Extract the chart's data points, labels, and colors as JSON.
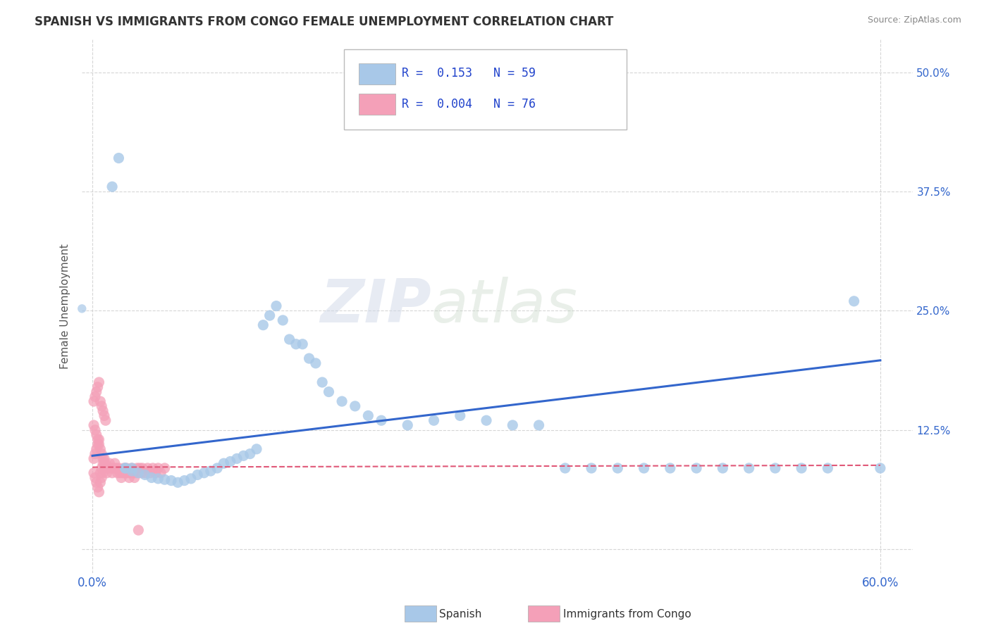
{
  "title": "SPANISH VS IMMIGRANTS FROM CONGO FEMALE UNEMPLOYMENT CORRELATION CHART",
  "source": "Source: ZipAtlas.com",
  "ylabel": "Female Unemployment",
  "x_tick_positions": [
    0.0,
    0.6
  ],
  "x_tick_labels": [
    "0.0%",
    "60.0%"
  ],
  "y_ticks": [
    0.0,
    0.125,
    0.25,
    0.375,
    0.5
  ],
  "y_tick_labels_left": [
    "",
    "",
    "",
    "",
    ""
  ],
  "y_tick_labels_right": [
    "",
    "12.5%",
    "25.0%",
    "37.5%",
    "50.0%"
  ],
  "xlim": [
    -0.008,
    0.625
  ],
  "ylim": [
    -0.025,
    0.535
  ],
  "background_color": "#ffffff",
  "grid_color": "#cccccc",
  "watermark_text": "ZIPatlas",
  "spanish_color": "#a8c8e8",
  "congo_color": "#f4a0b8",
  "spanish_line_color": "#3366cc",
  "congo_line_color": "#e05878",
  "spanish_scatter_x": [
    0.025,
    0.03,
    0.035,
    0.04,
    0.045,
    0.05,
    0.055,
    0.06,
    0.065,
    0.07,
    0.075,
    0.08,
    0.085,
    0.09,
    0.095,
    0.1,
    0.105,
    0.11,
    0.115,
    0.12,
    0.125,
    0.13,
    0.135,
    0.14,
    0.145,
    0.15,
    0.155,
    0.16,
    0.165,
    0.17,
    0.175,
    0.18,
    0.19,
    0.2,
    0.21,
    0.22,
    0.24,
    0.26,
    0.28,
    0.3,
    0.32,
    0.34,
    0.36,
    0.38,
    0.4,
    0.42,
    0.44,
    0.46,
    0.48,
    0.5,
    0.52,
    0.54,
    0.56,
    0.58,
    0.6,
    0.015,
    0.02,
    0.025,
    0.03
  ],
  "spanish_scatter_y": [
    0.085,
    0.082,
    0.08,
    0.078,
    0.075,
    0.074,
    0.073,
    0.072,
    0.07,
    0.072,
    0.074,
    0.078,
    0.08,
    0.082,
    0.085,
    0.09,
    0.092,
    0.095,
    0.098,
    0.1,
    0.105,
    0.235,
    0.245,
    0.255,
    0.24,
    0.22,
    0.215,
    0.215,
    0.2,
    0.195,
    0.175,
    0.165,
    0.155,
    0.15,
    0.14,
    0.135,
    0.13,
    0.135,
    0.14,
    0.135,
    0.13,
    0.13,
    0.085,
    0.085,
    0.085,
    0.085,
    0.085,
    0.085,
    0.085,
    0.085,
    0.085,
    0.085,
    0.085,
    0.26,
    0.085,
    0.38,
    0.41,
    0.085,
    0.085
  ],
  "congo_scatter_x": [
    0.001,
    0.002,
    0.003,
    0.004,
    0.005,
    0.006,
    0.007,
    0.008,
    0.009,
    0.01,
    0.001,
    0.002,
    0.003,
    0.004,
    0.005,
    0.006,
    0.007,
    0.008,
    0.009,
    0.01,
    0.001,
    0.002,
    0.003,
    0.004,
    0.005,
    0.006,
    0.007,
    0.008,
    0.009,
    0.01,
    0.001,
    0.002,
    0.003,
    0.004,
    0.005,
    0.006,
    0.007,
    0.008,
    0.009,
    0.01,
    0.011,
    0.012,
    0.013,
    0.014,
    0.015,
    0.016,
    0.017,
    0.018,
    0.019,
    0.02,
    0.021,
    0.022,
    0.023,
    0.024,
    0.025,
    0.026,
    0.027,
    0.028,
    0.029,
    0.03,
    0.031,
    0.032,
    0.033,
    0.034,
    0.035,
    0.036,
    0.037,
    0.038,
    0.04,
    0.042,
    0.044,
    0.046,
    0.048,
    0.05,
    0.052,
    0.055
  ],
  "congo_scatter_y": [
    0.155,
    0.16,
    0.165,
    0.17,
    0.175,
    0.155,
    0.15,
    0.145,
    0.14,
    0.135,
    0.13,
    0.125,
    0.12,
    0.115,
    0.11,
    0.105,
    0.1,
    0.095,
    0.09,
    0.085,
    0.08,
    0.075,
    0.07,
    0.065,
    0.06,
    0.07,
    0.075,
    0.08,
    0.085,
    0.09,
    0.095,
    0.1,
    0.105,
    0.11,
    0.115,
    0.08,
    0.085,
    0.09,
    0.095,
    0.085,
    0.08,
    0.085,
    0.09,
    0.085,
    0.08,
    0.085,
    0.09,
    0.085,
    0.08,
    0.085,
    0.08,
    0.075,
    0.08,
    0.085,
    0.08,
    0.085,
    0.08,
    0.075,
    0.08,
    0.085,
    0.08,
    0.075,
    0.08,
    0.085,
    0.02,
    0.085,
    0.08,
    0.085,
    0.08,
    0.085,
    0.08,
    0.085,
    0.08,
    0.085,
    0.08,
    0.085
  ],
  "spanish_trend_x": [
    0.0,
    0.6
  ],
  "spanish_trend_y": [
    0.098,
    0.198
  ],
  "congo_trend_x": [
    0.0,
    0.6
  ],
  "congo_trend_y": [
    0.086,
    0.088
  ],
  "legend_entries": [
    {
      "label": "R =  0.153   N = 59",
      "color": "#a8c8e8"
    },
    {
      "label": "R =  0.004   N = 76",
      "color": "#f4a0b8"
    }
  ],
  "bottom_legend": [
    {
      "label": "Spanish",
      "color": "#a8c8e8"
    },
    {
      "label": "Immigrants from Congo",
      "color": "#f4a0b8"
    }
  ]
}
